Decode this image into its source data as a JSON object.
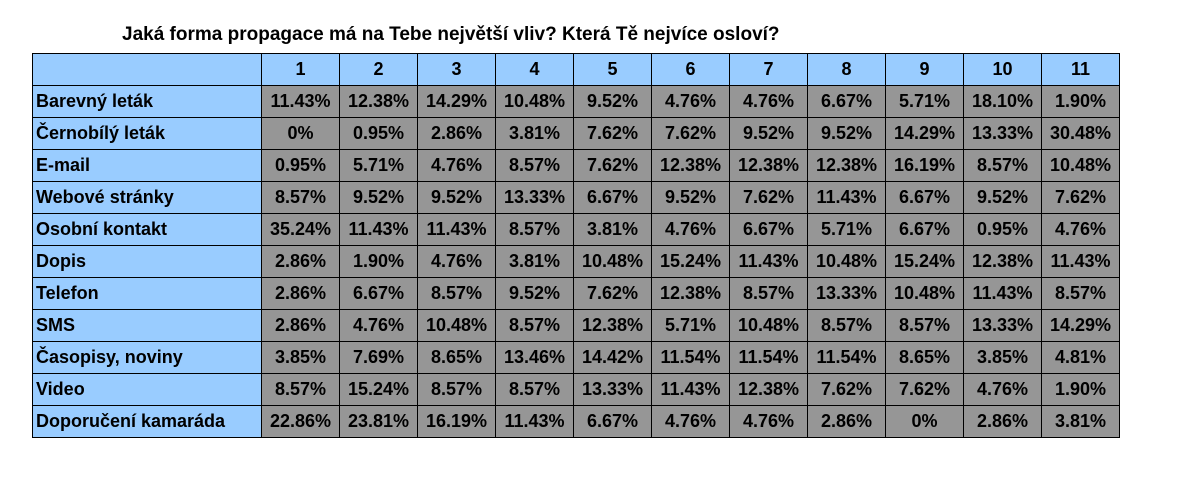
{
  "title": "Jaká forma propagace má na Tebe největší vliv? Která Tě nejvíce osloví?",
  "table": {
    "header": [
      "1",
      "2",
      "3",
      "4",
      "5",
      "6",
      "7",
      "8",
      "9",
      "10",
      "11"
    ],
    "rows": [
      {
        "label": "Barevný leták",
        "cells": [
          "11.43%",
          "12.38%",
          "14.29%",
          "10.48%",
          "9.52%",
          "4.76%",
          "4.76%",
          "6.67%",
          "5.71%",
          "18.10%",
          "1.90%"
        ]
      },
      {
        "label": "Černobílý leták",
        "cells": [
          "0%",
          "0.95%",
          "2.86%",
          "3.81%",
          "7.62%",
          "7.62%",
          "9.52%",
          "9.52%",
          "14.29%",
          "13.33%",
          "30.48%"
        ]
      },
      {
        "label": "E-mail",
        "cells": [
          "0.95%",
          "5.71%",
          "4.76%",
          "8.57%",
          "7.62%",
          "12.38%",
          "12.38%",
          "12.38%",
          "16.19%",
          "8.57%",
          "10.48%"
        ]
      },
      {
        "label": "Webové stránky",
        "cells": [
          "8.57%",
          "9.52%",
          "9.52%",
          "13.33%",
          "6.67%",
          "9.52%",
          "7.62%",
          "11.43%",
          "6.67%",
          "9.52%",
          "7.62%"
        ]
      },
      {
        "label": "Osobní kontakt",
        "cells": [
          "35.24%",
          "11.43%",
          "11.43%",
          "8.57%",
          "3.81%",
          "4.76%",
          "6.67%",
          "5.71%",
          "6.67%",
          "0.95%",
          "4.76%"
        ]
      },
      {
        "label": "Dopis",
        "cells": [
          "2.86%",
          "1.90%",
          "4.76%",
          "3.81%",
          "10.48%",
          "15.24%",
          "11.43%",
          "10.48%",
          "15.24%",
          "12.38%",
          "11.43%"
        ]
      },
      {
        "label": "Telefon",
        "cells": [
          "2.86%",
          "6.67%",
          "8.57%",
          "9.52%",
          "7.62%",
          "12.38%",
          "8.57%",
          "13.33%",
          "10.48%",
          "11.43%",
          "8.57%"
        ]
      },
      {
        "label": "SMS",
        "cells": [
          "2.86%",
          "4.76%",
          "10.48%",
          "8.57%",
          "12.38%",
          "5.71%",
          "10.48%",
          "8.57%",
          "8.57%",
          "13.33%",
          "14.29%"
        ]
      },
      {
        "label": "Časopisy, noviny",
        "cells": [
          "3.85%",
          "7.69%",
          "8.65%",
          "13.46%",
          "14.42%",
          "11.54%",
          "11.54%",
          "11.54%",
          "8.65%",
          "3.85%",
          "4.81%"
        ]
      },
      {
        "label": "Video",
        "cells": [
          "8.57%",
          "15.24%",
          "8.57%",
          "8.57%",
          "13.33%",
          "11.43%",
          "12.38%",
          "7.62%",
          "7.62%",
          "4.76%",
          "1.90%"
        ]
      },
      {
        "label": "Doporučení kamaráda",
        "cells": [
          "22.86%",
          "23.81%",
          "16.19%",
          "11.43%",
          "6.67%",
          "4.76%",
          "4.76%",
          "2.86%",
          "0%",
          "2.86%",
          "3.81%"
        ]
      }
    ]
  }
}
